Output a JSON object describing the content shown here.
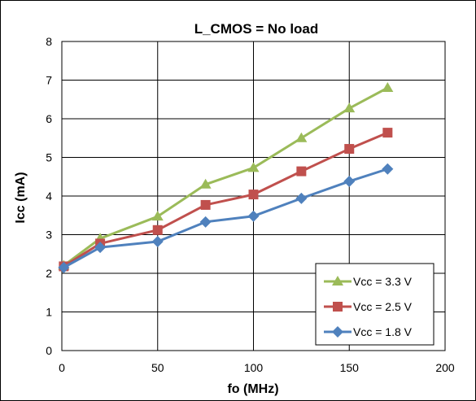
{
  "chart_data": {
    "type": "line",
    "title": "L_CMOS = No load",
    "xlabel": "fo (MHz)",
    "ylabel": "Icc (mA)",
    "xlim": [
      0,
      200
    ],
    "ylim": [
      0,
      8
    ],
    "xticks": [
      "0",
      "50",
      "100",
      "150",
      "200"
    ],
    "yticks": [
      "0",
      "1",
      "2",
      "3",
      "4",
      "5",
      "6",
      "7",
      "8"
    ],
    "grid": true,
    "legend_position": "bottom-right",
    "x": [
      1,
      20,
      50,
      75,
      100,
      125,
      150,
      170
    ],
    "series": [
      {
        "name": "Vcc = 3.3 V",
        "color": "#9BBB59",
        "marker": "triangle",
        "values": [
          2.2,
          2.9,
          3.47,
          4.3,
          4.73,
          5.5,
          6.27,
          6.8
        ]
      },
      {
        "name": "Vcc = 2.5 V",
        "color": "#C0504D",
        "marker": "square",
        "values": [
          2.18,
          2.77,
          3.12,
          3.77,
          4.04,
          4.64,
          5.22,
          5.64
        ]
      },
      {
        "name": "Vcc = 1.8 V",
        "color": "#4F81BD",
        "marker": "diamond",
        "values": [
          2.15,
          2.67,
          2.82,
          3.33,
          3.48,
          3.94,
          4.38,
          4.7
        ]
      }
    ]
  }
}
